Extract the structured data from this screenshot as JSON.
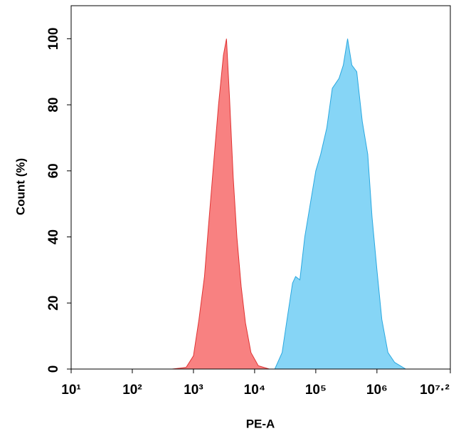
{
  "chart_data": {
    "type": "area",
    "x_label": "PE-A",
    "y_label": "Count (%)",
    "x_scale": "log",
    "xlim": [
      10,
      15848932
    ],
    "ylim": [
      0,
      110
    ],
    "xticks": [
      {
        "value": 10,
        "label": "10¹"
      },
      {
        "value": 100,
        "label": "10²"
      },
      {
        "value": 1000,
        "label": "10³"
      },
      {
        "value": 10000,
        "label": "10⁴"
      },
      {
        "value": 100000,
        "label": "10⁵"
      },
      {
        "value": 1000000,
        "label": "10⁶"
      },
      {
        "value": 15848932,
        "label": "10⁷·²"
      }
    ],
    "yticks": [
      0,
      20,
      40,
      60,
      80,
      100
    ],
    "series": [
      {
        "color": "#f87a7a",
        "edge": "#e03434",
        "x": [
          447,
          759,
          1000,
          1230,
          1514,
          1738,
          2089,
          2570,
          3090,
          3467,
          3890,
          4467,
          5129,
          6026,
          7079,
          8710,
          11482,
          17378
        ],
        "values": [
          0,
          0.5,
          4,
          15,
          28,
          42,
          60,
          80,
          95,
          100,
          82,
          58,
          40,
          25,
          14,
          5,
          1,
          0
        ]
      },
      {
        "color": "#7fd3f5",
        "edge": "#2aa8e0",
        "x": [
          21380,
          28184,
          33884,
          41687,
          46774,
          54954,
          66069,
          81283,
          100000,
          120226,
          151356,
          186209,
          239883,
          281838,
          331131,
          389045,
          467735,
          575440,
          707946,
          831764,
          1000000,
          1202264,
          1513561,
          1949845,
          2951209
        ],
        "values": [
          0,
          5,
          15,
          26,
          28,
          27,
          40,
          50,
          60,
          65,
          73,
          85,
          88,
          92,
          100,
          92,
          90,
          75,
          65,
          46,
          30,
          15,
          5,
          2,
          0
        ]
      }
    ]
  }
}
